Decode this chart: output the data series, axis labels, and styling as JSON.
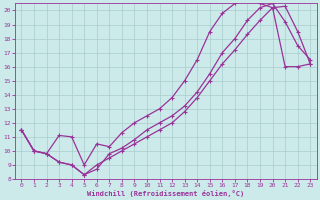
{
  "title": "",
  "xlabel": "Windchill (Refroidissement éolien,°C)",
  "ylabel": "",
  "bg_color": "#cceaea",
  "line_color": "#993399",
  "grid_color": "#aacccc",
  "xlim": [
    -0.5,
    23.5
  ],
  "ylim": [
    8,
    20.5
  ],
  "xticks": [
    0,
    1,
    2,
    3,
    4,
    5,
    6,
    7,
    8,
    9,
    10,
    11,
    12,
    13,
    14,
    15,
    16,
    17,
    18,
    19,
    20,
    21,
    22,
    23
  ],
  "yticks": [
    8,
    9,
    10,
    11,
    12,
    13,
    14,
    15,
    16,
    17,
    18,
    19,
    20
  ],
  "curve1_x": [
    0,
    1,
    2,
    3,
    4,
    5,
    6,
    7,
    8,
    9,
    10,
    11,
    12,
    13,
    14,
    15,
    16,
    17,
    18,
    19,
    20,
    21,
    22,
    23
  ],
  "curve1_y": [
    11.5,
    10.0,
    9.8,
    9.2,
    9.0,
    8.3,
    8.7,
    9.8,
    10.2,
    10.8,
    11.5,
    12.0,
    12.5,
    13.2,
    14.2,
    15.5,
    17.0,
    18.0,
    19.3,
    20.2,
    20.5,
    19.2,
    17.5,
    16.5
  ],
  "curve2_x": [
    0,
    1,
    2,
    3,
    4,
    5,
    6,
    7,
    8,
    9,
    10,
    11,
    12,
    13,
    14,
    15,
    16,
    17,
    18,
    19,
    20,
    21,
    22,
    23
  ],
  "curve2_y": [
    11.5,
    10.0,
    9.8,
    11.1,
    11.0,
    9.0,
    10.5,
    10.3,
    11.3,
    12.0,
    12.5,
    13.0,
    13.8,
    15.0,
    16.5,
    18.5,
    19.8,
    20.5,
    20.8,
    20.5,
    20.2,
    16.0,
    16.0,
    16.2
  ],
  "curve3_x": [
    0,
    1,
    2,
    3,
    4,
    5,
    6,
    7,
    8,
    9,
    10,
    11,
    12,
    13,
    14,
    15,
    16,
    17,
    18,
    19,
    20,
    21,
    22,
    23
  ],
  "curve3_y": [
    11.5,
    10.0,
    9.8,
    9.2,
    9.0,
    8.3,
    9.0,
    9.5,
    10.0,
    10.5,
    11.0,
    11.5,
    12.0,
    12.8,
    13.8,
    15.0,
    16.2,
    17.2,
    18.3,
    19.3,
    20.2,
    20.3,
    18.5,
    16.2
  ],
  "marker": "+"
}
